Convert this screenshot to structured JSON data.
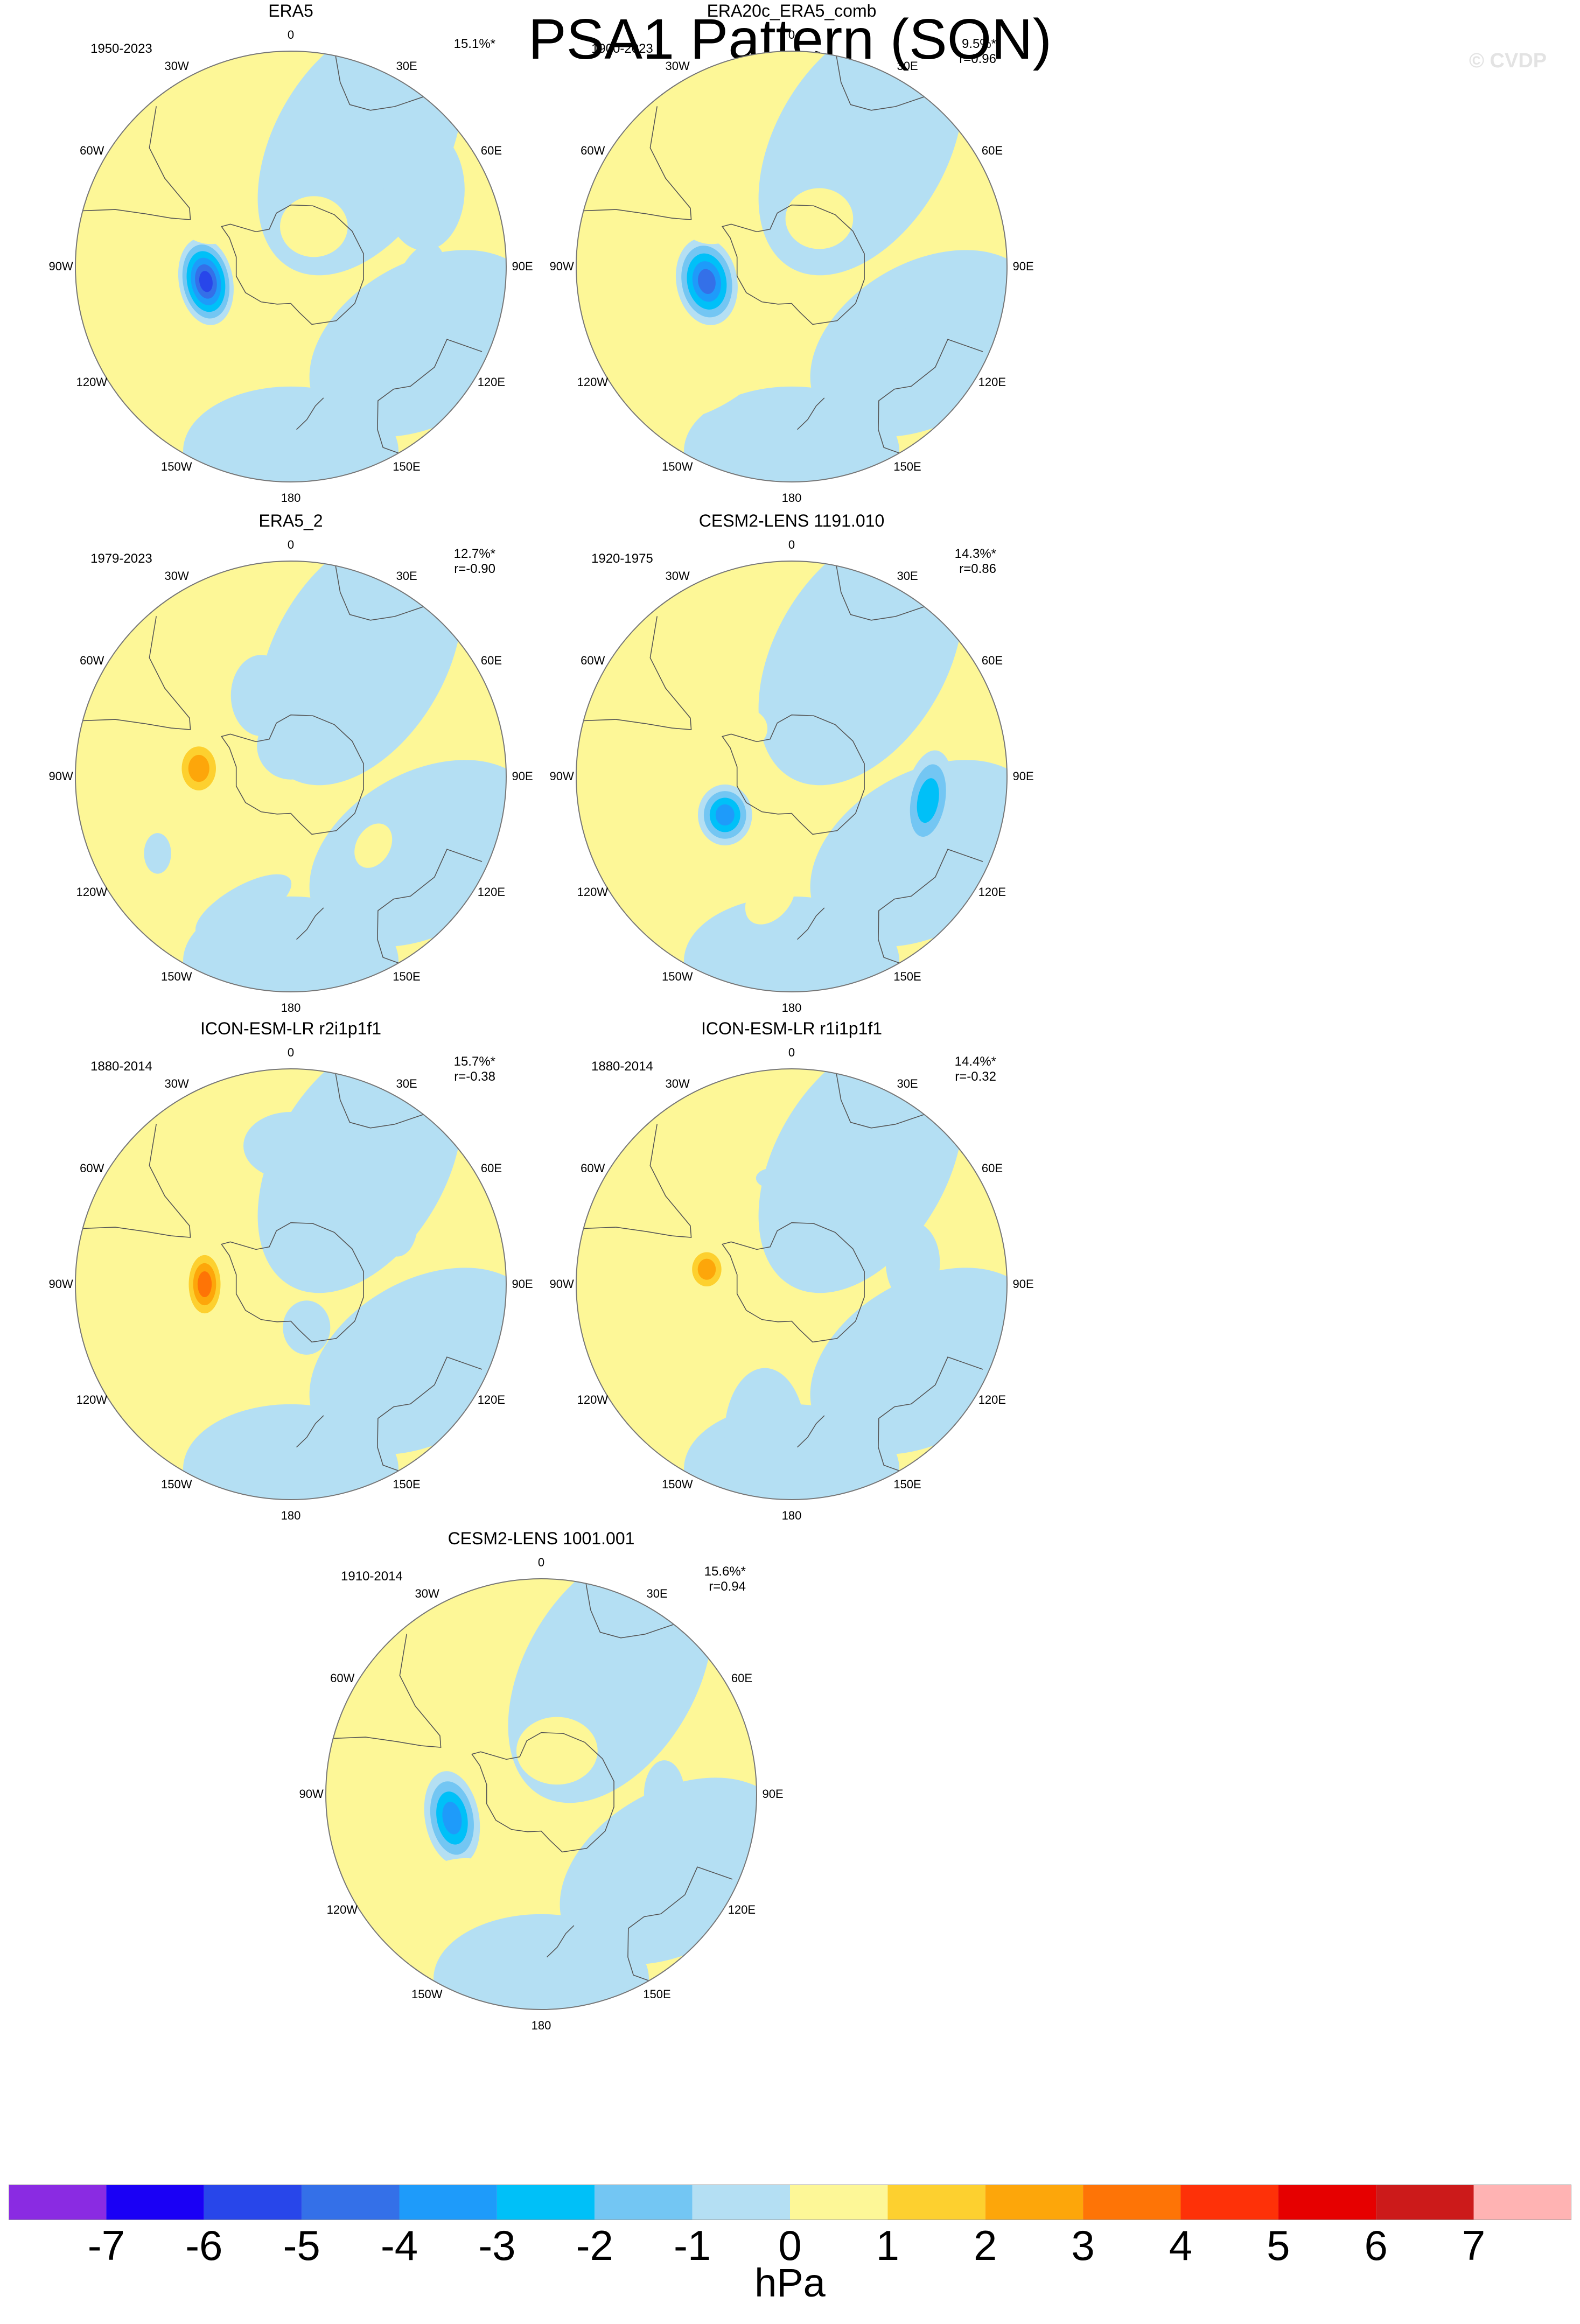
{
  "figure": {
    "title": "PSA1 Pattern (SON)",
    "watermark": "© CVDP"
  },
  "projection": "south-polar-stereographic",
  "longitude_labels": [
    "0",
    "30E",
    "60E",
    "90E",
    "120E",
    "150E",
    "180",
    "150W",
    "120W",
    "90W",
    "60W",
    "30W"
  ],
  "panels": [
    {
      "title": "ERA5",
      "period": "1950-2023",
      "variance": "15.1%*",
      "correlation": "",
      "anomalies": [
        {
          "lon": 260,
          "lat": -62,
          "value": -6,
          "rx": 8,
          "ry": 13,
          "rot": -10
        },
        {
          "lon": 300,
          "lat": -60,
          "value": 1,
          "rx": 9,
          "ry": 7,
          "rot": 0
        },
        {
          "lon": 30,
          "lat": -75,
          "value": 1,
          "rx": 10,
          "ry": 9,
          "rot": 0
        },
        {
          "lon": 100,
          "lat": -48,
          "value": -1,
          "rx": 7,
          "ry": 14,
          "rot": 20
        },
        {
          "lon": 225,
          "lat": -45,
          "value": 1,
          "rx": 6,
          "ry": 16,
          "rot": 60
        },
        {
          "lon": 60,
          "lat": -40,
          "value": -1,
          "rx": 12,
          "ry": 18,
          "rot": 0
        }
      ]
    },
    {
      "title": "ERA20c_ERA5_comb",
      "period": "1900-2023",
      "variance": "9.5%*",
      "correlation": "r=0.96",
      "anomalies": [
        {
          "lon": 260,
          "lat": -62,
          "value": -5,
          "rx": 9,
          "ry": 13,
          "rot": -10
        },
        {
          "lon": 300,
          "lat": -60,
          "value": 1,
          "rx": 9,
          "ry": 7,
          "rot": 0
        },
        {
          "lon": 30,
          "lat": -72,
          "value": 1,
          "rx": 10,
          "ry": 9,
          "rot": 0
        },
        {
          "lon": 110,
          "lat": -50,
          "value": -1,
          "rx": 4,
          "ry": 6,
          "rot": 0
        },
        {
          "lon": 215,
          "lat": -45,
          "value": 1,
          "rx": 8,
          "ry": 20,
          "rot": 60
        }
      ]
    },
    {
      "title": "ERA5_2",
      "period": "1979-2023",
      "variance": "12.7%*",
      "correlation": "r=-0.90",
      "anomalies": [
        {
          "lon": 275,
          "lat": -60,
          "value": 3,
          "rx": 7,
          "ry": 9,
          "rot": 0
        },
        {
          "lon": 340,
          "lat": -62,
          "value": -1,
          "rx": 9,
          "ry": 12,
          "rot": 0
        },
        {
          "lon": 0,
          "lat": -80,
          "value": -1,
          "rx": 10,
          "ry": 10,
          "rot": 0
        },
        {
          "lon": 200,
          "lat": -45,
          "value": -1,
          "rx": 6,
          "ry": 16,
          "rot": 60
        },
        {
          "lon": 130,
          "lat": -55,
          "value": 1,
          "rx": 5,
          "ry": 7,
          "rot": 30
        },
        {
          "lon": 240,
          "lat": -40,
          "value": -1,
          "rx": 4,
          "ry": 6,
          "rot": 0
        }
      ]
    },
    {
      "title": "CESM2-LENS 1191.010",
      "period": "1920-1975",
      "variance": "14.3%*",
      "correlation": "r=0.86",
      "anomalies": [
        {
          "lon": 240,
          "lat": -65,
          "value": -4,
          "rx": 8,
          "ry": 9,
          "rot": 0
        },
        {
          "lon": 100,
          "lat": -45,
          "value": -3,
          "rx": 7,
          "ry": 15,
          "rot": 10
        },
        {
          "lon": 315,
          "lat": -68,
          "value": 1,
          "rx": 7,
          "ry": 6,
          "rot": 0
        },
        {
          "lon": 190,
          "lat": -50,
          "value": 1,
          "rx": 6,
          "ry": 9,
          "rot": 40
        },
        {
          "lon": 10,
          "lat": -55,
          "value": -1,
          "rx": 5,
          "ry": 3,
          "rot": 0
        }
      ]
    },
    {
      "title": "ICON-ESM-LR r2i1p1f1",
      "period": "1880-2014",
      "variance": "15.7%*",
      "correlation": "r=-0.38",
      "anomalies": [
        {
          "lon": 270,
          "lat": -62,
          "value": 4,
          "rx": 6,
          "ry": 11,
          "rot": 0
        },
        {
          "lon": 60,
          "lat": -50,
          "value": -1,
          "rx": 6,
          "ry": 10,
          "rot": 0
        },
        {
          "lon": 0,
          "lat": -45,
          "value": -1,
          "rx": 14,
          "ry": 10,
          "rot": 0
        },
        {
          "lon": 160,
          "lat": -75,
          "value": -1,
          "rx": 7,
          "ry": 8,
          "rot": 0
        }
      ]
    },
    {
      "title": "ICON-ESM-LR r1i1p1f1",
      "period": "1880-2014",
      "variance": "14.4%*",
      "correlation": "r=-0.32",
      "anomalies": [
        {
          "lon": 280,
          "lat": -62,
          "value": 3,
          "rx": 6,
          "ry": 7,
          "rot": 0
        },
        {
          "lon": 80,
          "lat": -50,
          "value": -1,
          "rx": 8,
          "ry": 12,
          "rot": 0
        },
        {
          "lon": 350,
          "lat": -55,
          "value": -1,
          "rx": 5,
          "ry": 3,
          "rot": 0
        },
        {
          "lon": 190,
          "lat": -40,
          "value": -1,
          "rx": 12,
          "ry": 20,
          "rot": 0
        }
      ]
    },
    {
      "title": "CESM2-LENS 1001.001",
      "period": "1910-2014",
      "variance": "15.6%*",
      "correlation": "r=0.94",
      "anomalies": [
        {
          "lon": 255,
          "lat": -60,
          "value": -4,
          "rx": 8,
          "ry": 14,
          "rot": -10
        },
        {
          "lon": 20,
          "lat": -75,
          "value": 1,
          "rx": 12,
          "ry": 10,
          "rot": 0
        },
        {
          "lon": 90,
          "lat": -50,
          "value": -1,
          "rx": 6,
          "ry": 10,
          "rot": 0
        },
        {
          "lon": 225,
          "lat": -40,
          "value": 1,
          "rx": 10,
          "ry": 20,
          "rot": 60
        },
        {
          "lon": 20,
          "lat": -55,
          "value": -1,
          "rx": 4,
          "ry": 3,
          "rot": 0
        }
      ]
    }
  ],
  "colorbar": {
    "levels": [
      "-7",
      "-6",
      "-5",
      "-4",
      "-3",
      "-2",
      "-1",
      "0",
      "1",
      "2",
      "3",
      "4",
      "5",
      "6",
      "7"
    ],
    "colors": [
      "#8a2be2",
      "#1a00f5",
      "#2846ea",
      "#3470e8",
      "#1e9bfa",
      "#00c0f8",
      "#73c6f3",
      "#b4dff3",
      "#fdf797",
      "#fdd02f",
      "#fda60a",
      "#fe7406",
      "#fe3108",
      "#e60000",
      "#cc1a1a",
      "#ffb3b3"
    ],
    "units": "hPa"
  }
}
